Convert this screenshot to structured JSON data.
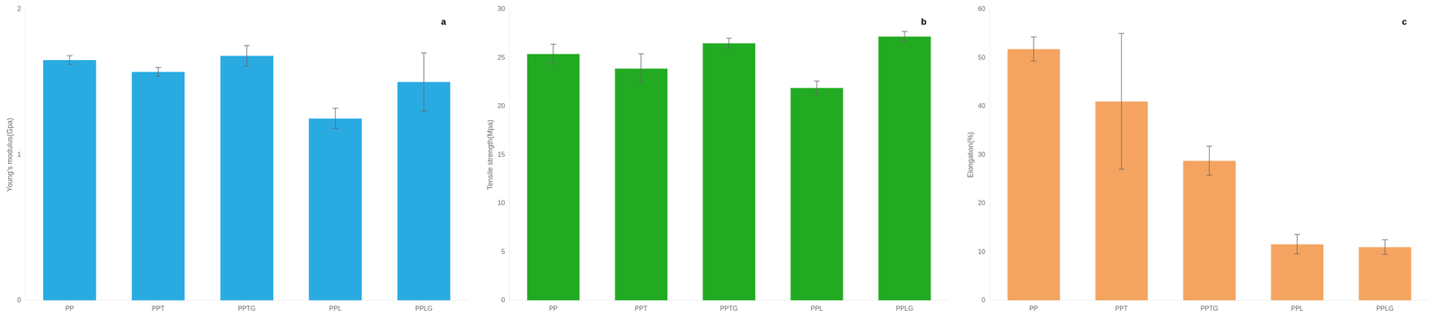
{
  "chart_data": [
    {
      "type": "bar",
      "categories": [
        "PP",
        "PPT",
        "PPTG",
        "PPL",
        "PPLG"
      ],
      "values": [
        1.65,
        1.57,
        1.68,
        1.25,
        1.5
      ],
      "errors": [
        0.03,
        0.03,
        0.07,
        0.07,
        0.2
      ],
      "ylabel": "Young's modulus(Gpa)",
      "ylim": [
        0,
        2
      ],
      "yticks": [
        0,
        1,
        2
      ],
      "color": "#29ABE2",
      "annotations": [
        "a"
      ],
      "grid": false
    },
    {
      "type": "bar",
      "categories": [
        "PP",
        "PPT",
        "PPTG",
        "PPL",
        "PPLG"
      ],
      "values": [
        25.4,
        23.9,
        26.5,
        21.9,
        27.2
      ],
      "errors": [
        1.0,
        1.5,
        0.5,
        0.7,
        0.5
      ],
      "ylabel": "Tensile strength(Mpa)",
      "ylim": [
        0,
        30
      ],
      "yticks": [
        0,
        5,
        10,
        15,
        20,
        25,
        30
      ],
      "color": "#22AA22",
      "annotations": [
        "b"
      ],
      "grid": false
    },
    {
      "type": "bar",
      "categories": [
        "PP",
        "PPT",
        "PPTG",
        "PPL",
        "PPLG"
      ],
      "values": [
        51.8,
        41.0,
        28.8,
        11.6,
        11.0
      ],
      "errors": [
        2.5,
        14.0,
        3.0,
        2.0,
        1.5
      ],
      "ylabel": "Elongation(%)",
      "ylim": [
        0,
        60
      ],
      "yticks": [
        0,
        10,
        20,
        30,
        40,
        50,
        60
      ],
      "color": "#F4A460",
      "annotations": [
        "c"
      ],
      "grid": false
    }
  ]
}
